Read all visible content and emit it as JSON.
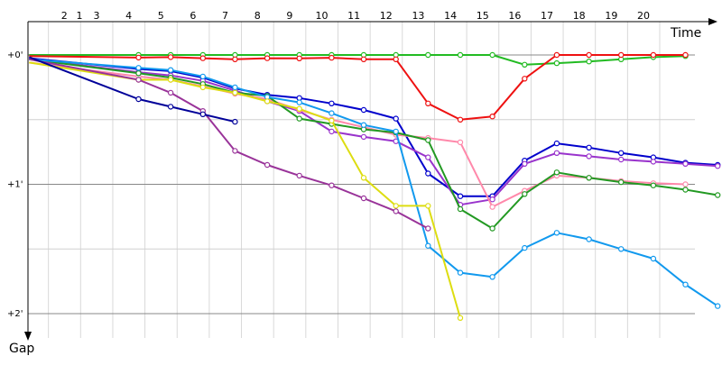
{
  "chart_data": {
    "type": "line",
    "title": "",
    "xlabel": "Time",
    "ylabel": "Gap",
    "x_ticks": [
      "1",
      "2",
      "3",
      "4",
      "5",
      "6",
      "7",
      "8",
      "9",
      "10",
      "11",
      "12",
      "13",
      "14",
      "15",
      "16",
      "17",
      "18",
      "19",
      "20"
    ],
    "y_ticks": [
      {
        "value": 0,
        "label": "+0'"
      },
      {
        "value": 60,
        "label": "+1'"
      },
      {
        "value": 120,
        "label": "+2'"
      }
    ],
    "xlim": [
      0.35,
      20.9
    ],
    "ylim_seconds": [
      -14,
      134
    ],
    "grid": true,
    "series": [
      {
        "color": "#22bb22",
        "points": [
          [
            0.4,
            0
          ],
          [
            3.8,
            0
          ],
          [
            4.8,
            0
          ],
          [
            5.8,
            0
          ],
          [
            6.8,
            0
          ],
          [
            7.8,
            0
          ],
          [
            8.8,
            0
          ],
          [
            9.8,
            0
          ],
          [
            10.8,
            0
          ],
          [
            11.8,
            0
          ],
          [
            12.8,
            0
          ],
          [
            13.8,
            0
          ],
          [
            14.8,
            0
          ],
          [
            15.8,
            4.5
          ],
          [
            16.8,
            3.8
          ],
          [
            17.8,
            3.0
          ],
          [
            18.8,
            2.0
          ],
          [
            19.8,
            1.0
          ],
          [
            20.8,
            0.5
          ]
        ]
      },
      {
        "color": "#ee1111",
        "points": [
          [
            0.4,
            0.5
          ],
          [
            3.8,
            1.2
          ],
          [
            4.8,
            1.0
          ],
          [
            5.8,
            1.5
          ],
          [
            6.8,
            2.0
          ],
          [
            7.8,
            1.5
          ],
          [
            8.8,
            1.6
          ],
          [
            9.8,
            1.3
          ],
          [
            10.8,
            2.0
          ],
          [
            11.8,
            2.0
          ],
          [
            12.8,
            22.5
          ],
          [
            13.8,
            30.0
          ],
          [
            14.8,
            28.5
          ],
          [
            15.8,
            11.0
          ],
          [
            16.8,
            0
          ],
          [
            17.8,
            0
          ],
          [
            18.8,
            0
          ],
          [
            19.8,
            0
          ],
          [
            20.8,
            0
          ]
        ]
      },
      {
        "color": "#0000cc",
        "points": [
          [
            0.4,
            1.5
          ],
          [
            3.8,
            6.5
          ],
          [
            4.8,
            7.5
          ],
          [
            5.8,
            10.5
          ],
          [
            6.8,
            15.5
          ],
          [
            7.8,
            18.5
          ],
          [
            8.8,
            20.0
          ],
          [
            9.8,
            22.5
          ],
          [
            10.8,
            25.5
          ],
          [
            11.8,
            29.5
          ],
          [
            12.8,
            55.0
          ],
          [
            13.8,
            65.5
          ],
          [
            14.8,
            65.5
          ],
          [
            15.8,
            49.0
          ],
          [
            16.8,
            41.0
          ],
          [
            17.8,
            43.0
          ],
          [
            18.8,
            45.5
          ],
          [
            19.8,
            47.5
          ],
          [
            20.8,
            50.0
          ],
          [
            21.8,
            51.0
          ]
        ]
      },
      {
        "color": "#9933cc",
        "points": [
          [
            0.4,
            1.8
          ],
          [
            3.8,
            8.0
          ],
          [
            4.8,
            9.5
          ],
          [
            5.8,
            12.0
          ],
          [
            6.8,
            16.5
          ],
          [
            7.8,
            21.5
          ],
          [
            8.8,
            26.0
          ],
          [
            9.8,
            35.5
          ],
          [
            10.8,
            38.0
          ],
          [
            11.8,
            40.0
          ],
          [
            12.8,
            47.5
          ],
          [
            13.8,
            69.5
          ],
          [
            14.8,
            67.0
          ],
          [
            15.8,
            50.5
          ],
          [
            16.8,
            45.5
          ],
          [
            17.8,
            47.0
          ],
          [
            18.8,
            48.5
          ],
          [
            19.8,
            49.5
          ],
          [
            20.8,
            50.5
          ],
          [
            21.8,
            51.5
          ]
        ]
      },
      {
        "color": "#ff88aa",
        "points": [
          [
            0.4,
            3.5
          ],
          [
            3.8,
            10.0
          ],
          [
            4.8,
            11.5
          ],
          [
            5.8,
            14.5
          ],
          [
            6.8,
            18.0
          ],
          [
            7.8,
            20.5
          ],
          [
            8.8,
            25.5
          ],
          [
            9.8,
            30.0
          ],
          [
            10.8,
            33.5
          ],
          [
            11.8,
            37.0
          ],
          [
            12.8,
            38.5
          ],
          [
            13.8,
            40.5
          ],
          [
            14.8,
            70.5
          ],
          [
            15.8,
            63.0
          ],
          [
            16.8,
            56.0
          ],
          [
            17.8,
            57.0
          ],
          [
            18.8,
            58.5
          ],
          [
            19.8,
            59.5
          ],
          [
            20.8,
            60.0
          ]
        ]
      },
      {
        "color": "#229922",
        "points": [
          [
            0.4,
            2.0
          ],
          [
            3.8,
            8.5
          ],
          [
            4.8,
            10.5
          ],
          [
            5.8,
            13.5
          ],
          [
            6.8,
            17.5
          ],
          [
            7.8,
            19.0
          ],
          [
            8.8,
            29.5
          ],
          [
            9.8,
            32.0
          ],
          [
            10.8,
            34.5
          ],
          [
            11.8,
            36.0
          ],
          [
            12.8,
            39.5
          ],
          [
            13.8,
            71.5
          ],
          [
            14.8,
            80.5
          ],
          [
            15.8,
            64.5
          ],
          [
            16.8,
            54.5
          ],
          [
            17.8,
            57.0
          ],
          [
            18.8,
            59.0
          ],
          [
            19.8,
            60.5
          ],
          [
            20.8,
            62.5
          ],
          [
            21.8,
            65.0
          ]
        ]
      },
      {
        "color": "#1199ee",
        "points": [
          [
            0.4,
            2.0
          ],
          [
            3.8,
            6.0
          ],
          [
            4.8,
            7.0
          ],
          [
            5.8,
            10.0
          ],
          [
            6.8,
            15.0
          ],
          [
            7.8,
            19.5
          ],
          [
            8.8,
            22.0
          ],
          [
            9.8,
            27.0
          ],
          [
            10.8,
            32.5
          ],
          [
            11.8,
            35.5
          ],
          [
            12.8,
            88.5
          ],
          [
            13.8,
            101.0
          ],
          [
            14.8,
            103.0
          ],
          [
            15.8,
            89.5
          ],
          [
            16.8,
            82.5
          ],
          [
            17.8,
            85.5
          ],
          [
            18.8,
            90.0
          ],
          [
            19.8,
            94.5
          ],
          [
            20.8,
            106.5
          ],
          [
            21.8,
            116.5
          ]
        ]
      },
      {
        "color": "#dddd11",
        "points": [
          [
            0.4,
            3.5
          ],
          [
            3.8,
            11.5
          ],
          [
            4.8,
            11.5
          ],
          [
            5.8,
            15.0
          ],
          [
            6.8,
            17.5
          ],
          [
            7.8,
            21.5
          ],
          [
            8.8,
            25.0
          ],
          [
            9.8,
            30.5
          ],
          [
            10.8,
            57.0
          ],
          [
            11.8,
            70.0
          ],
          [
            12.8,
            70.0
          ],
          [
            13.8,
            122.0
          ]
        ]
      },
      {
        "color": "#993399",
        "points": [
          [
            0.4,
            2.0
          ],
          [
            3.8,
            11.5
          ],
          [
            4.8,
            17.5
          ],
          [
            5.8,
            26.0
          ],
          [
            6.8,
            44.5
          ],
          [
            7.8,
            51.0
          ],
          [
            8.8,
            56.0
          ],
          [
            9.8,
            60.5
          ],
          [
            10.8,
            66.5
          ],
          [
            11.8,
            72.5
          ],
          [
            12.8,
            80.5
          ]
        ]
      },
      {
        "color": "#000099",
        "points": [
          [
            0.4,
            1.0
          ],
          [
            3.8,
            20.5
          ],
          [
            4.8,
            24.0
          ],
          [
            5.8,
            27.5
          ],
          [
            6.8,
            31.0
          ]
        ]
      }
    ]
  }
}
